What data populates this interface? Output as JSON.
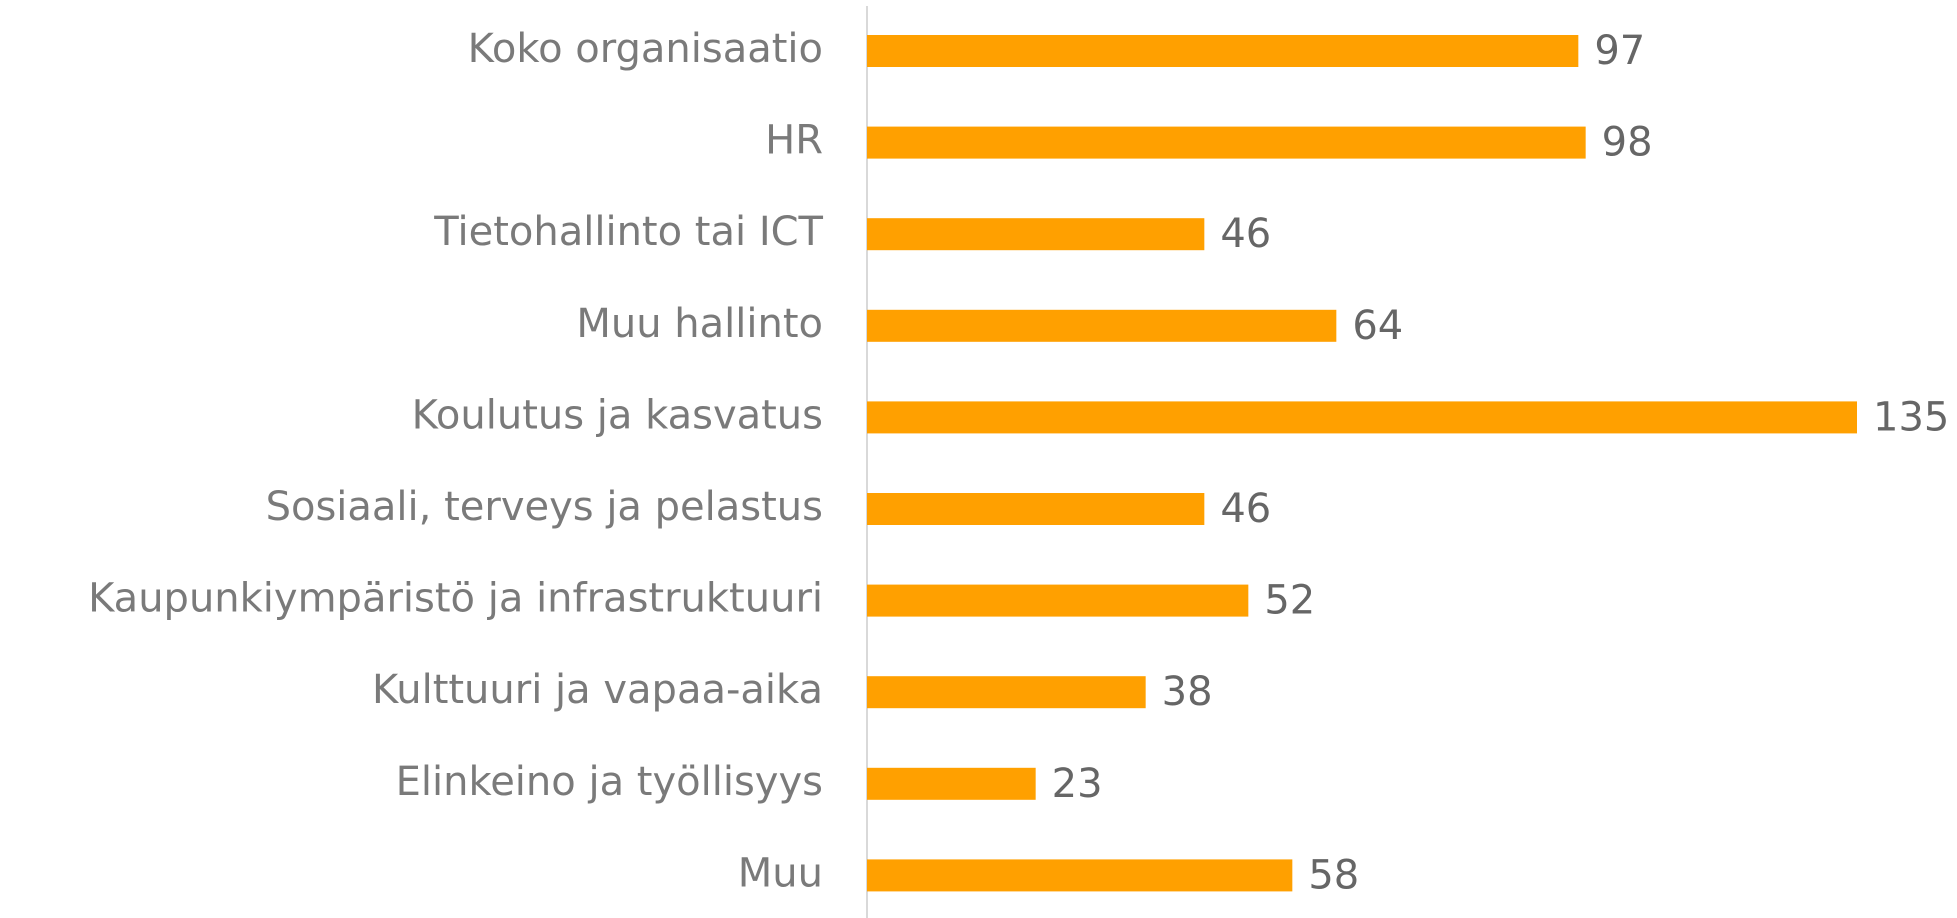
{
  "chart_data": {
    "type": "bar",
    "orientation": "horizontal",
    "categories": [
      "Koko organisaatio",
      "HR",
      "Tietohallinto tai ICT",
      "Muu hallinto",
      "Koulutus ja kasvatus",
      "Sosiaali, terveys ja pelastus",
      "Kaupunkiympäristö ja infrastruktuuri",
      "Kulttuuri ja vapaa-aika",
      "Elinkeino ja työllisyys",
      "Muu"
    ],
    "values": [
      97,
      98,
      46,
      64,
      135,
      46,
      52,
      38,
      23,
      58
    ],
    "color": "#ffa000"
  }
}
